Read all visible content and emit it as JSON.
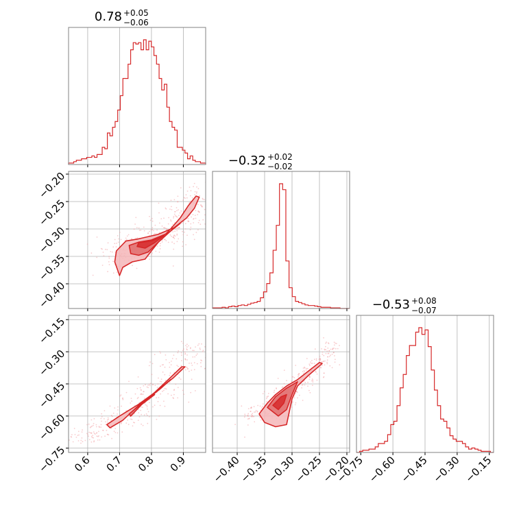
{
  "chart_data": {
    "type": "corner",
    "colors": {
      "main": "#d62728",
      "fill_dark": "#e06666",
      "fill_light": "#f4b6b9",
      "scatter": "#f3a3a6",
      "grid": "#b0b0b0",
      "frame": "#808080"
    },
    "parameters": [
      {
        "median": "0.78",
        "plus": "+0.05",
        "minus": "−0.06",
        "range": [
          0.54,
          0.97
        ],
        "ticks": [
          0.6,
          0.7,
          0.8,
          0.9
        ],
        "tick_labels": [
          "0.6",
          "0.7",
          "0.8",
          "0.9"
        ]
      },
      {
        "median": "−0.32",
        "plus": "+0.02",
        "minus": "−0.02",
        "range": [
          -0.445,
          -0.195
        ],
        "ticks": [
          -0.4,
          -0.35,
          -0.3,
          -0.25,
          -0.2
        ],
        "tick_labels": [
          "−0.40",
          "−0.35",
          "−0.30",
          "−0.25",
          "−0.20"
        ]
      },
      {
        "median": "−0.53",
        "plus": "+0.08",
        "minus": "−0.07",
        "range": [
          -0.77,
          -0.13
        ],
        "ticks": [
          -0.75,
          -0.6,
          -0.45,
          -0.3,
          -0.15
        ],
        "tick_labels": [
          "−0.75",
          "−0.60",
          "−0.45",
          "−0.30",
          "−0.15"
        ]
      }
    ],
    "histograms": [
      {
        "bin_edges": [
          0.54,
          0.97
        ],
        "counts": [
          1,
          1,
          2,
          3,
          3,
          4,
          4,
          5,
          5,
          6,
          5,
          7,
          7,
          12,
          11,
          22,
          20,
          26,
          30,
          38,
          48,
          60,
          60,
          70,
          80,
          85,
          84,
          85,
          80,
          87,
          80,
          86,
          82,
          76,
          70,
          60,
          52,
          56,
          40,
          30,
          26,
          24,
          12,
          12,
          10,
          8,
          4,
          6,
          3,
          2,
          2,
          1,
          1
        ]
      },
      {
        "bin_edges": [
          -0.445,
          -0.195
        ],
        "counts": [
          1,
          1,
          1,
          2,
          1,
          3,
          4,
          3,
          5,
          6,
          5,
          7,
          9,
          10,
          12,
          18,
          28,
          42,
          60,
          98,
          140,
          210,
          200,
          80,
          35,
          20,
          12,
          10,
          8,
          6,
          5,
          5,
          4,
          3,
          2,
          2,
          2,
          1,
          1,
          1,
          0,
          0,
          0
        ]
      },
      {
        "bin_edges": [
          -0.77,
          -0.13
        ],
        "counts": [
          0,
          1,
          2,
          2,
          3,
          3,
          5,
          8,
          8,
          10,
          16,
          25,
          28,
          42,
          58,
          70,
          87,
          96,
          96,
          108,
          112,
          106,
          110,
          95,
          74,
          56,
          42,
          30,
          28,
          22,
          15,
          12,
          10,
          10,
          8,
          5,
          3,
          4,
          3,
          2,
          1,
          1,
          1,
          0
        ]
      }
    ],
    "pairs": [
      {
        "x_param": 0,
        "y_param": 1,
        "rho": 0.55,
        "curve": [
          [
            0.66,
            -0.345
          ],
          [
            0.72,
            -0.338
          ],
          [
            0.78,
            -0.328
          ],
          [
            0.84,
            -0.312
          ],
          [
            0.88,
            -0.296
          ],
          [
            0.92,
            -0.272
          ],
          [
            0.95,
            -0.24
          ]
        ],
        "spread_x": 0.06,
        "spread_y": 0.018,
        "contours": [
          [
            [
              0.69,
              -0.34
            ],
            [
              0.72,
              -0.322
            ],
            [
              0.76,
              -0.318
            ],
            [
              0.82,
              -0.31
            ],
            [
              0.87,
              -0.298
            ],
            [
              0.91,
              -0.28
            ],
            [
              0.935,
              -0.262
            ],
            [
              0.95,
              -0.242
            ],
            [
              0.94,
              -0.24
            ],
            [
              0.915,
              -0.258
            ],
            [
              0.89,
              -0.28
            ],
            [
              0.86,
              -0.3
            ],
            [
              0.83,
              -0.318
            ],
            [
              0.8,
              -0.34
            ],
            [
              0.78,
              -0.355
            ],
            [
              0.74,
              -0.36
            ],
            [
              0.71,
              -0.37
            ],
            [
              0.7,
              -0.385
            ],
            [
              0.685,
              -0.36
            ]
          ],
          [
            [
              0.73,
              -0.33
            ],
            [
              0.76,
              -0.324
            ],
            [
              0.8,
              -0.32
            ],
            [
              0.85,
              -0.308
            ],
            [
              0.89,
              -0.29
            ],
            [
              0.86,
              -0.304
            ],
            [
              0.82,
              -0.325
            ],
            [
              0.79,
              -0.342
            ],
            [
              0.76,
              -0.348
            ],
            [
              0.735,
              -0.345
            ]
          ],
          [
            [
              0.76,
              -0.325
            ],
            [
              0.8,
              -0.322
            ],
            [
              0.84,
              -0.312
            ],
            [
              0.81,
              -0.325
            ],
            [
              0.78,
              -0.335
            ],
            [
              0.755,
              -0.332
            ]
          ]
        ]
      },
      {
        "x_param": 0,
        "y_param": 2,
        "rho": 0.99,
        "curve": [
          [
            0.56,
            -0.72
          ],
          [
            0.62,
            -0.68
          ],
          [
            0.68,
            -0.63
          ],
          [
            0.74,
            -0.57
          ],
          [
            0.8,
            -0.5
          ],
          [
            0.86,
            -0.42
          ],
          [
            0.91,
            -0.34
          ],
          [
            0.95,
            -0.26
          ]
        ],
        "spread_x": 0.08,
        "spread_y": 0.015,
        "contours": [
          [
            [
              0.66,
              -0.64
            ],
            [
              0.7,
              -0.6
            ],
            [
              0.76,
              -0.545
            ],
            [
              0.82,
              -0.48
            ],
            [
              0.87,
              -0.42
            ],
            [
              0.905,
              -0.37
            ],
            [
              0.895,
              -0.37
            ],
            [
              0.86,
              -0.42
            ],
            [
              0.81,
              -0.49
            ],
            [
              0.76,
              -0.55
            ],
            [
              0.71,
              -0.62
            ],
            [
              0.67,
              -0.655
            ]
          ],
          [
            [
              0.73,
              -0.59
            ],
            [
              0.78,
              -0.53
            ],
            [
              0.83,
              -0.47
            ],
            [
              0.86,
              -0.43
            ],
            [
              0.82,
              -0.48
            ],
            [
              0.77,
              -0.545
            ],
            [
              0.735,
              -0.6
            ]
          ],
          [
            [
              0.77,
              -0.545
            ],
            [
              0.81,
              -0.5
            ],
            [
              0.8,
              -0.505
            ],
            [
              0.765,
              -0.55
            ]
          ]
        ]
      },
      {
        "x_param": 1,
        "y_param": 2,
        "rho": 0.55,
        "curve": [
          [
            -0.38,
            -0.6
          ],
          [
            -0.34,
            -0.57
          ],
          [
            -0.32,
            -0.54
          ],
          [
            -0.3,
            -0.48
          ],
          [
            -0.28,
            -0.42
          ],
          [
            -0.25,
            -0.35
          ],
          [
            -0.225,
            -0.28
          ]
        ],
        "spread_x": 0.02,
        "spread_y": 0.03,
        "contours": [
          [
            [
              -0.36,
              -0.59
            ],
            [
              -0.345,
              -0.54
            ],
            [
              -0.33,
              -0.5
            ],
            [
              -0.31,
              -0.46
            ],
            [
              -0.29,
              -0.43
            ],
            [
              -0.27,
              -0.39
            ],
            [
              -0.25,
              -0.35
            ],
            [
              -0.245,
              -0.355
            ],
            [
              -0.27,
              -0.41
            ],
            [
              -0.29,
              -0.46
            ],
            [
              -0.3,
              -0.52
            ],
            [
              -0.305,
              -0.58
            ],
            [
              -0.31,
              -0.64
            ],
            [
              -0.33,
              -0.65
            ],
            [
              -0.35,
              -0.63
            ]
          ],
          [
            [
              -0.345,
              -0.56
            ],
            [
              -0.33,
              -0.51
            ],
            [
              -0.31,
              -0.47
            ],
            [
              -0.29,
              -0.44
            ],
            [
              -0.3,
              -0.5
            ],
            [
              -0.31,
              -0.57
            ],
            [
              -0.325,
              -0.6
            ]
          ],
          [
            [
              -0.335,
              -0.55
            ],
            [
              -0.32,
              -0.51
            ],
            [
              -0.31,
              -0.5
            ],
            [
              -0.315,
              -0.54
            ],
            [
              -0.325,
              -0.57
            ]
          ]
        ]
      }
    ]
  }
}
